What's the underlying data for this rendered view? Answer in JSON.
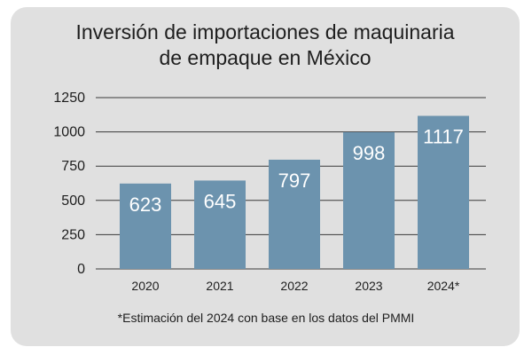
{
  "chart_data": {
    "type": "bar",
    "title_lines": [
      "Inversión de importaciones de maquinaria",
      "de empaque en México"
    ],
    "categories": [
      "2020",
      "2021",
      "2022",
      "2023",
      "2024*"
    ],
    "values": [
      623,
      645,
      797,
      998,
      1117
    ],
    "value_labels": [
      "623",
      "645",
      "797",
      "998",
      "1117"
    ],
    "y_ticks": [
      0,
      250,
      500,
      750,
      1000,
      1250
    ],
    "ylim": [
      0,
      1250
    ],
    "xlabel": "",
    "ylabel": "",
    "grid": true,
    "legend": "none",
    "footnote": "*Estimación del 2024 con base en los datos del PMMI"
  },
  "colors": {
    "background_card": "#e0e0e0",
    "bar": "#6c93ae",
    "bar_label": "#ffffff",
    "gridline": "#3a3a3a",
    "text": "#1e1e1e"
  }
}
